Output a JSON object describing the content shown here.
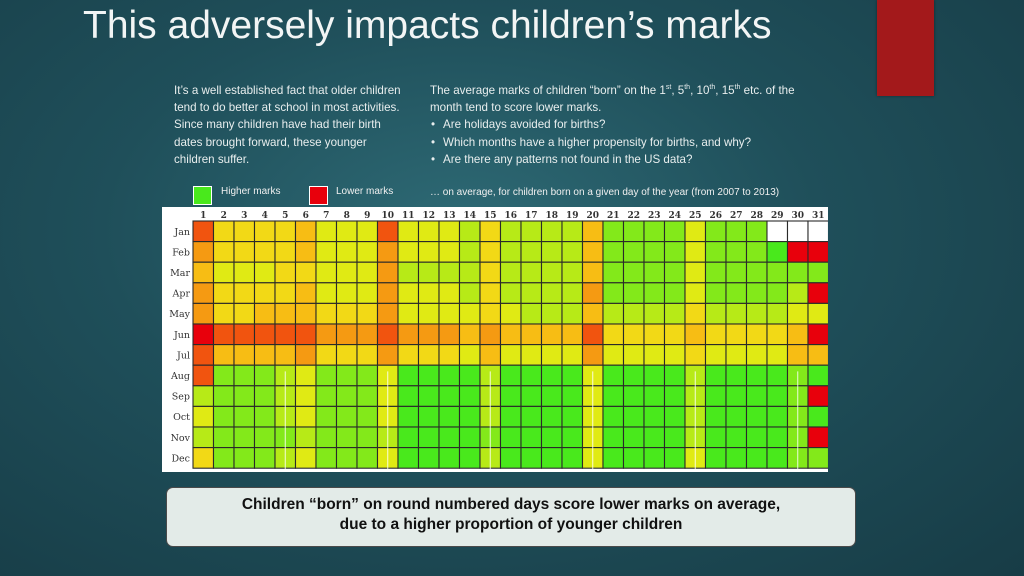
{
  "title": "This adversely impacts children’s marks",
  "left_paragraph": "It’s a well established fact that older children tend to do better at school in most activities. Since many children have had their birth dates brought forward, these younger children suffer.",
  "right_paragraph": {
    "intro_before": "The average marks of children “born” on the 1",
    "ord1": "st",
    "sep1": ", 5",
    "ord2": "th",
    "sep2": ", 10",
    "ord3": "th",
    "sep3": ", 15",
    "ord4": "th",
    "intro_after": " etc. of the month tend to score lower marks.",
    "bullets": [
      "Are holidays avoided for births?",
      "Which months have a higher propensity for births, and why?",
      "Are there any patterns not found in the US data?"
    ]
  },
  "legend": {
    "higher_label": "Higher marks",
    "lower_label": "Lower marks",
    "higher_color": "#49e91c",
    "lower_color": "#e8000c"
  },
  "caption": "… on average, for children born on a given day of the year (from 2007 to 2013)",
  "callout": {
    "line1": "Children “born” on round numbered days score lower marks on average,",
    "line2": "due to a higher proportion of younger children"
  },
  "chart_data": {
    "type": "heatmap",
    "x": [
      "1",
      "2",
      "3",
      "4",
      "5",
      "6",
      "7",
      "8",
      "9",
      "10",
      "11",
      "12",
      "13",
      "14",
      "15",
      "16",
      "17",
      "18",
      "19",
      "20",
      "21",
      "22",
      "23",
      "24",
      "25",
      "26",
      "27",
      "28",
      "29",
      "30",
      "31"
    ],
    "y": [
      "Jan",
      "Feb",
      "Mar",
      "Apr",
      "May",
      "Jun",
      "Jul",
      "Aug",
      "Sep",
      "Oct",
      "Nov",
      "Dec"
    ],
    "value_scale": "1 = lower marks (red), 10 = higher marks (green)",
    "values": [
      [
        2,
        5,
        5,
        5,
        5,
        4,
        6,
        6,
        6,
        2,
        6,
        6,
        6,
        7,
        5,
        7,
        7,
        7,
        7,
        4,
        8,
        8,
        8,
        8,
        6,
        8,
        8,
        8,
        null,
        null,
        null
      ],
      [
        3,
        5,
        5,
        5,
        5,
        4,
        6,
        6,
        6,
        3,
        6,
        6,
        6,
        7,
        5,
        7,
        7,
        7,
        7,
        4,
        8,
        8,
        8,
        8,
        6,
        8,
        8,
        8,
        9,
        1,
        1
      ],
      [
        4,
        6,
        6,
        6,
        5,
        5,
        6,
        6,
        6,
        3,
        7,
        7,
        7,
        7,
        5,
        7,
        7,
        7,
        7,
        4,
        8,
        8,
        8,
        8,
        6,
        8,
        8,
        8,
        8,
        8,
        8
      ],
      [
        3,
        5,
        5,
        5,
        5,
        4,
        6,
        6,
        6,
        3,
        6,
        6,
        6,
        7,
        5,
        7,
        7,
        7,
        7,
        3,
        8,
        8,
        8,
        8,
        6,
        8,
        8,
        8,
        8,
        7,
        1
      ],
      [
        3,
        5,
        5,
        4,
        4,
        4,
        5,
        5,
        5,
        3,
        6,
        6,
        6,
        6,
        5,
        6,
        7,
        7,
        7,
        4,
        7,
        7,
        7,
        7,
        5,
        7,
        7,
        7,
        7,
        6,
        6
      ],
      [
        1,
        2,
        2,
        2,
        2,
        2,
        3,
        3,
        3,
        2,
        3,
        3,
        3,
        4,
        3,
        4,
        4,
        4,
        4,
        2,
        5,
        5,
        5,
        5,
        4,
        5,
        5,
        5,
        5,
        4,
        1
      ],
      [
        2,
        4,
        4,
        4,
        4,
        3,
        5,
        5,
        5,
        3,
        5,
        5,
        5,
        6,
        4,
        6,
        6,
        6,
        6,
        3,
        6,
        6,
        6,
        6,
        5,
        6,
        6,
        6,
        6,
        4,
        4
      ],
      [
        2,
        8,
        8,
        8,
        7,
        6,
        8,
        8,
        8,
        6,
        9,
        9,
        9,
        9,
        7,
        9,
        9,
        9,
        9,
        6,
        9,
        9,
        9,
        9,
        7,
        9,
        9,
        9,
        9,
        8,
        9
      ],
      [
        7,
        8,
        8,
        8,
        7,
        6,
        8,
        8,
        8,
        6,
        9,
        9,
        9,
        9,
        7,
        9,
        9,
        9,
        9,
        6,
        9,
        9,
        9,
        9,
        7,
        9,
        9,
        9,
        9,
        8,
        1
      ],
      [
        6,
        8,
        8,
        8,
        7,
        6,
        8,
        8,
        8,
        6,
        9,
        9,
        9,
        9,
        7,
        9,
        9,
        9,
        9,
        6,
        9,
        9,
        9,
        9,
        7,
        9,
        9,
        9,
        9,
        8,
        9
      ],
      [
        7,
        8,
        8,
        8,
        8,
        7,
        8,
        8,
        8,
        7,
        9,
        9,
        9,
        9,
        8,
        9,
        9,
        9,
        9,
        6,
        9,
        9,
        9,
        9,
        7,
        9,
        9,
        9,
        9,
        8,
        1
      ],
      [
        5,
        8,
        8,
        8,
        7,
        6,
        8,
        8,
        8,
        6,
        9,
        9,
        9,
        9,
        7,
        9,
        9,
        9,
        9,
        6,
        9,
        9,
        9,
        9,
        6,
        9,
        9,
        9,
        9,
        8,
        8
      ]
    ],
    "colors": {
      "1": "#e8000c",
      "2": "#f1540f",
      "3": "#f59a12",
      "4": "#f7bd14",
      "5": "#f2d916",
      "6": "#e0ea14",
      "7": "#b7ea17",
      "8": "#83e91a",
      "9": "#49e91c",
      "10": "#2fe11a"
    }
  }
}
